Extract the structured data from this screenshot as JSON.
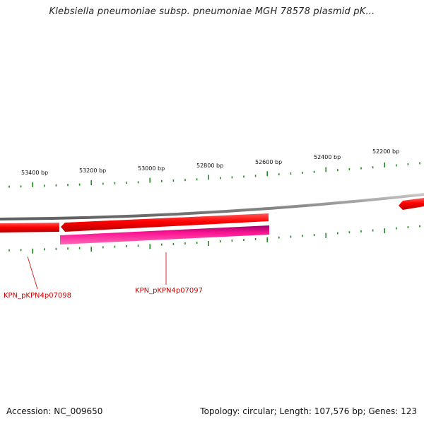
{
  "title": "Klebsiella pneumoniae subsp. pneumoniae MGH 78578 plasmid pK...",
  "ruler_ticks": [
    "53400 bp",
    "53200 bp",
    "53000 bp",
    "52800 bp",
    "52600 bp",
    "52400 bp",
    "52200 bp"
  ],
  "genes": [
    {
      "label": "KPN_pKPN4p07098",
      "strand": "forward",
      "color": "#ff0000"
    },
    {
      "label": "KPN_pKPN4p07097",
      "strand": "reverse",
      "color": "#ff1493"
    },
    {
      "label": "",
      "strand": "forward",
      "color": "#ff0000"
    }
  ],
  "colors": {
    "forward_gene": "#ff0000",
    "reverse_gene": "#ff1493",
    "backbone": "#888888",
    "tick": "#228b22",
    "label": "#cc0000"
  },
  "footer": {
    "accession": "Accession: NC_009650",
    "summary": "Topology: circular; Length: 107,576 bp; Genes: 123"
  }
}
